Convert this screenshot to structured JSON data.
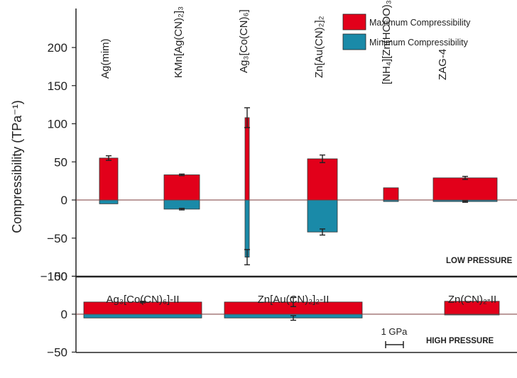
{
  "colors": {
    "max": "#e2001a",
    "min": "#1a8aa8",
    "axis": "#222222",
    "zero": "#7a3a3a"
  },
  "legend": {
    "max_label": "Maximum Compressibility",
    "min_label": "Minimum Compressibility"
  },
  "chart_data": [
    {
      "type": "bar",
      "panel": "top",
      "ylabel": "Compressibility (TPa⁻¹)",
      "ylim": [
        -100,
        250
      ],
      "yticks": [
        -100,
        -50,
        0,
        50,
        100,
        150,
        200
      ],
      "yticklabels": [
        "−100",
        "−50",
        "0",
        "50",
        "100",
        "150",
        "200"
      ],
      "panel_label": "LOW PRESSURE",
      "legend_placement": "top-right",
      "categories": [
        {
          "label": "Ag(mim)",
          "max": 55,
          "max_err": 3,
          "min": -5
        },
        {
          "label": "KMn[Ag(CN)₂]₃",
          "max": 33,
          "max_err": 1,
          "min": -12,
          "min_err": 1
        },
        {
          "label": "Ag₃[Co(CN)₆]",
          "max": 108,
          "max_err": 13,
          "min": -75,
          "min_err": 10
        },
        {
          "label": "Zn[Au(CN)₂]₂",
          "max": 54,
          "max_err": 5,
          "min": -42,
          "min_err": 4
        },
        {
          "label": "[NH₄][Zn(HCOO)₃]",
          "max": 16,
          "min": -2
        },
        {
          "label": "ZAG-4",
          "max": 29,
          "max_err": 2,
          "min": -2,
          "min_err": 1
        }
      ]
    },
    {
      "type": "bar",
      "panel": "bottom",
      "ylim": [
        -50,
        50
      ],
      "yticks": [
        -50,
        0,
        50
      ],
      "yticklabels": [
        "−50",
        "0",
        "50"
      ],
      "panel_label": "HIGH PRESSURE",
      "scale_bar_label": "1 GPa",
      "categories": [
        {
          "label": "Ag₃[Co(CN)₆]-II",
          "max": 16,
          "max_err": 1,
          "min": -5
        },
        {
          "label": "Zn[Au(CN)₂]₂-II",
          "max": 16,
          "max_err": 6,
          "min": -5,
          "min_err": 3
        },
        {
          "label": "Zn(CN)₂-II",
          "max": 17,
          "min": -1
        }
      ]
    }
  ]
}
